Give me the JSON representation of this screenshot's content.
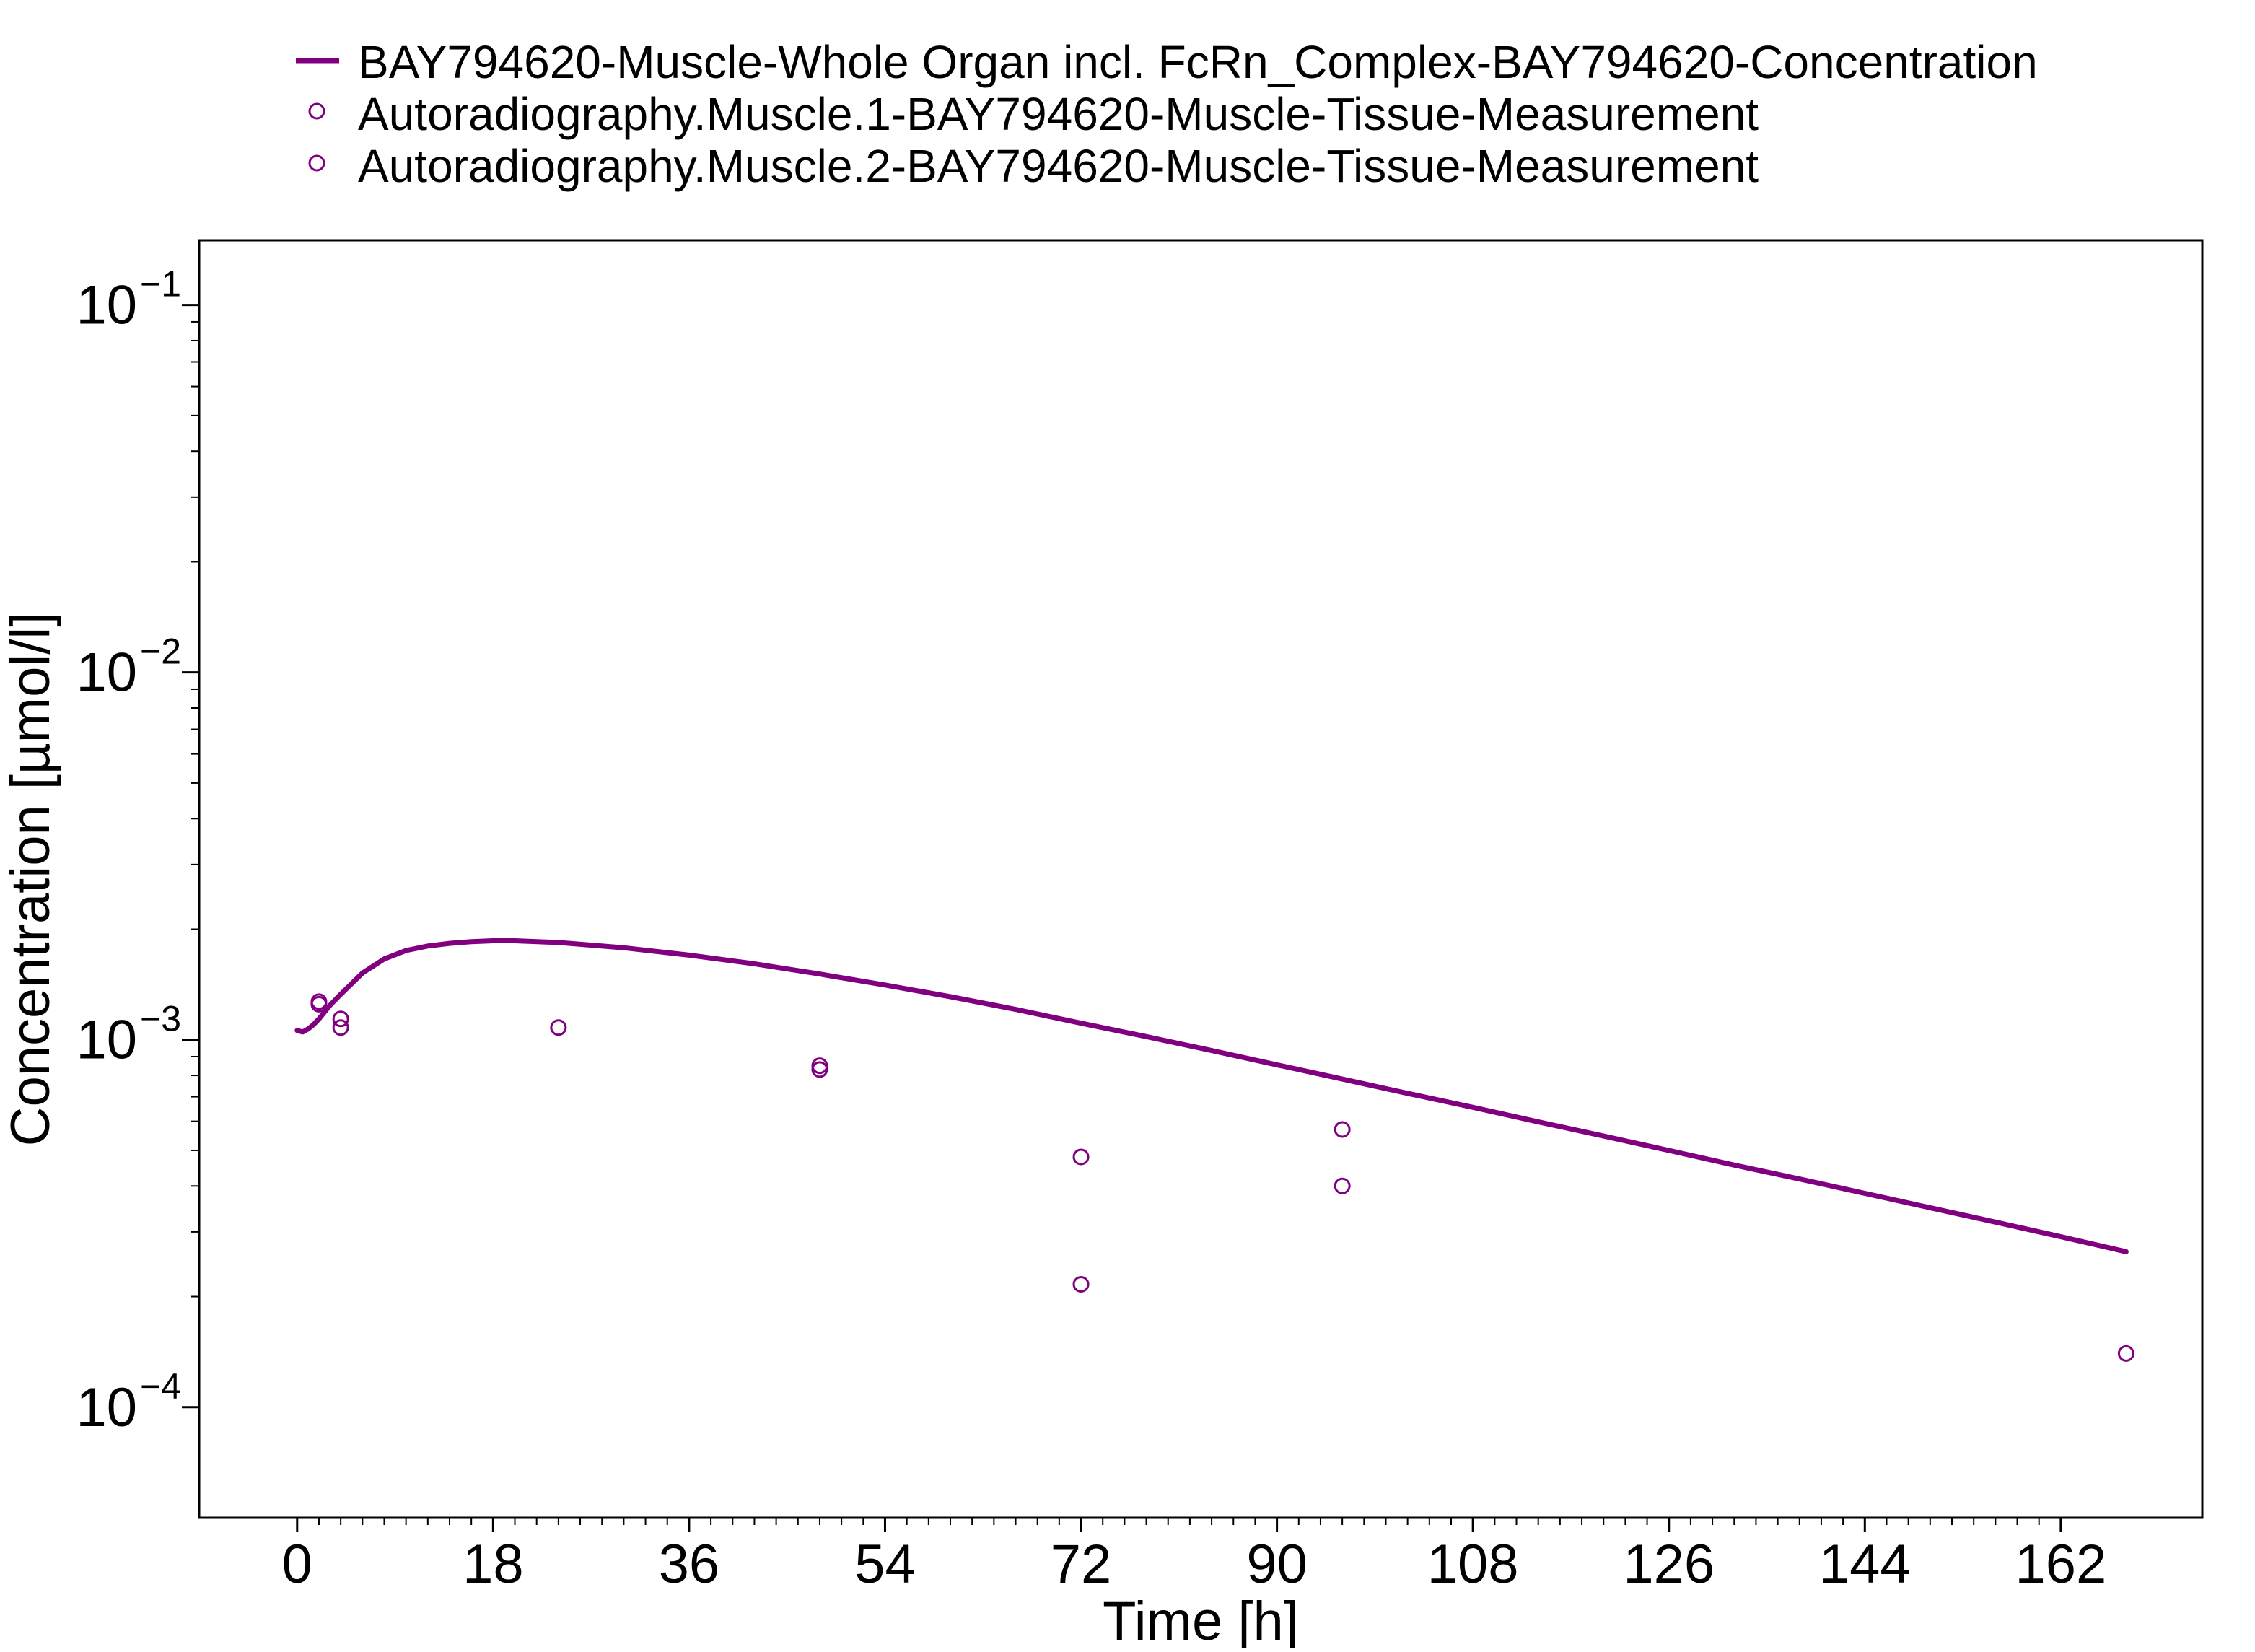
{
  "chart_data": {
    "type": "line",
    "title": "",
    "xlabel": "Time [h]",
    "ylabel": "Concentration [µmol/l]",
    "xlim": [
      -9,
      175
    ],
    "ylim": [
      5e-05,
      0.15
    ],
    "y_scale": "log",
    "x_ticks": [
      0,
      18,
      36,
      54,
      72,
      90,
      108,
      126,
      144,
      162
    ],
    "x_tick_labels": [
      "0",
      "18",
      "36",
      "54",
      "72",
      "90",
      "108",
      "126",
      "144",
      "162"
    ],
    "x_minor_step": 2,
    "y_ticks": [
      0.0001,
      0.001,
      0.01,
      0.1
    ],
    "y_tick_labels": [
      {
        "base": "10",
        "exp": "−4"
      },
      {
        "base": "10",
        "exp": "−3"
      },
      {
        "base": "10",
        "exp": "−2"
      },
      {
        "base": "10",
        "exp": "−1"
      }
    ],
    "grid": false,
    "legend_position": "top",
    "series": [
      {
        "name": "BAY794620-Muscle-Whole Organ incl. FcRn_Complex-BAY794620-Concentration",
        "kind": "line",
        "color": "#800080",
        "x": [
          0,
          0.5,
          1,
          1.5,
          2,
          3,
          4,
          6,
          8,
          10,
          12,
          14,
          16,
          18,
          20,
          24,
          30,
          36,
          42,
          48,
          54,
          60,
          66,
          72,
          78,
          84,
          90,
          96,
          102,
          108,
          114,
          120,
          126,
          132,
          138,
          144,
          150,
          156,
          162,
          168
        ],
        "y": [
          0.00106,
          0.00105,
          0.00107,
          0.0011,
          0.00114,
          0.00124,
          0.00133,
          0.00152,
          0.00166,
          0.00175,
          0.0018,
          0.00183,
          0.00185,
          0.00186,
          0.00186,
          0.00184,
          0.00178,
          0.0017,
          0.00161,
          0.00151,
          0.00141,
          0.00131,
          0.00121,
          0.00111,
          0.00102,
          0.000935,
          0.000855,
          0.000782,
          0.000715,
          0.000655,
          0.000598,
          0.000547,
          0.0005,
          0.000456,
          0.000418,
          0.000382,
          0.000349,
          0.000319,
          0.000291,
          0.000265
        ]
      },
      {
        "name": "Autoradiography.Muscle.1-BAY794620-Muscle-Tissue-Measurement",
        "kind": "scatter",
        "color": "#800080",
        "x": [
          2,
          4,
          24,
          48,
          72,
          96,
          168
        ],
        "y": [
          0.00127,
          0.00114,
          0.00108,
          0.00085,
          0.00048,
          0.00057,
          0.00014
        ]
      },
      {
        "name": "Autoradiography.Muscle.2-BAY794620-Muscle-Tissue-Measurement",
        "kind": "scatter",
        "color": "#800080",
        "x": [
          2,
          4,
          48,
          72,
          96
        ],
        "y": [
          0.00125,
          0.00108,
          0.00083,
          0.000216,
          0.0004
        ]
      }
    ]
  }
}
